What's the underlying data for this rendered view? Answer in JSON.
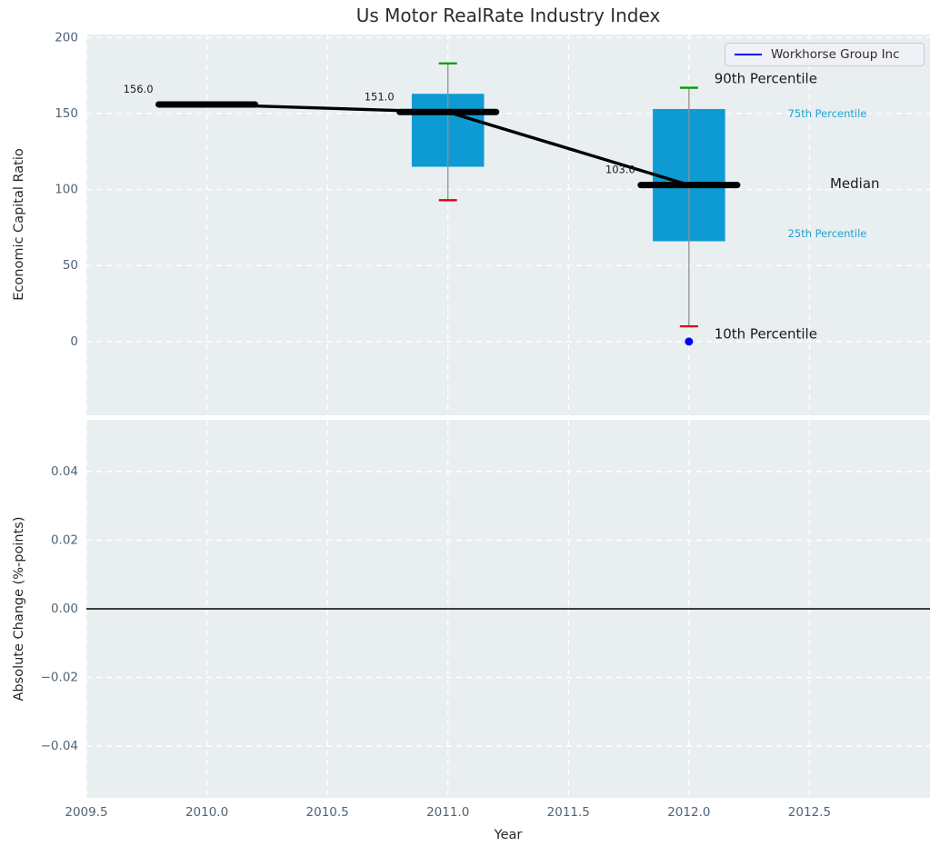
{
  "title": "Us Motor RealRate Industry Index",
  "legend": {
    "label": "Workhorse Group Inc",
    "line_color": "#0000ff"
  },
  "colors": {
    "plot_bg": "#e9eef0",
    "grid": "#ffffff",
    "box_fill": "#0e9bd3",
    "median": "#000000",
    "whisker": "#909090",
    "cap_90th": "#009c00",
    "cap_10th": "#e80000",
    "tick_label": "#4f6478",
    "text": "#1a1a1a",
    "cyan_label": "#1ba2d2",
    "company": "#0000ff"
  },
  "chart_data": {
    "type": "boxplot-timeseries",
    "title": "Us Motor RealRate Industry Index",
    "panels": [
      {
        "id": "top",
        "ylabel": "Economic Capital Ratio",
        "xlim": [
          2009.5,
          2013.0
        ],
        "ylim": [
          -48.5,
          202
        ],
        "grid": true,
        "yticks": [
          {
            "v": 200,
            "label": "200"
          },
          {
            "v": 150,
            "label": "150"
          },
          {
            "v": 100,
            "label": "100"
          },
          {
            "v": 50,
            "label": "50"
          },
          {
            "v": 0,
            "label": "0"
          }
        ],
        "xticks": [
          {
            "v": 2009.5
          },
          {
            "v": 2010.0
          },
          {
            "v": 2010.5
          },
          {
            "v": 2011.0
          },
          {
            "v": 2011.5
          },
          {
            "v": 2012.0
          },
          {
            "v": 2012.5
          }
        ],
        "boxes": [
          {
            "year": 2010,
            "median": 156.0,
            "median_label": "156.0"
          },
          {
            "year": 2011,
            "median": 151.0,
            "median_label": "151.0",
            "p90": 183,
            "p75": 163,
            "p25": 115,
            "p10": 93
          },
          {
            "year": 2012,
            "median": 103.0,
            "median_label": "103.0",
            "p90": 167,
            "p75": 153,
            "p25": 66,
            "p10": 10
          }
        ],
        "median_series": {
          "x": [
            2010,
            2011,
            2012
          ],
          "y": [
            156,
            151,
            103
          ]
        },
        "company_point": {
          "x": 2012,
          "y": 0,
          "name": "Workhorse Group Inc"
        },
        "annotations": [
          {
            "text": "90th Percentile",
            "x": 2012.105,
            "y": 173,
            "style": "big"
          },
          {
            "text": "75th Percentile",
            "x": 2012.41,
            "y": 150,
            "style": "small-cyan"
          },
          {
            "text": "Median",
            "x": 2012.585,
            "y": 104,
            "style": "big"
          },
          {
            "text": "25th Percentile",
            "x": 2012.41,
            "y": 71,
            "style": "small-cyan"
          },
          {
            "text": "10th Percentile",
            "x": 2012.105,
            "y": 5,
            "style": "big"
          }
        ]
      },
      {
        "id": "bottom",
        "ylabel": "Absolute Change (%-points)",
        "xlabel": "Year",
        "xlim": [
          2009.5,
          2013.0
        ],
        "ylim": [
          -0.0551,
          0.0551
        ],
        "grid": true,
        "zero_line": true,
        "yticks": [
          {
            "v": 0.04,
            "label": "0.04"
          },
          {
            "v": 0.02,
            "label": "0.02"
          },
          {
            "v": 0.0,
            "label": "0.00"
          },
          {
            "v": -0.02,
            "label": "−0.02"
          },
          {
            "v": -0.04,
            "label": "−0.04"
          }
        ],
        "xticks": [
          {
            "v": 2009.5,
            "label": "2009.5"
          },
          {
            "v": 2010.0,
            "label": "2010.0"
          },
          {
            "v": 2010.5,
            "label": "2010.5"
          },
          {
            "v": 2011.0,
            "label": "2011.0"
          },
          {
            "v": 2011.5,
            "label": "2011.5"
          },
          {
            "v": 2012.0,
            "label": "2012.0"
          },
          {
            "v": 2012.5,
            "label": "2012.5"
          }
        ]
      }
    ]
  }
}
